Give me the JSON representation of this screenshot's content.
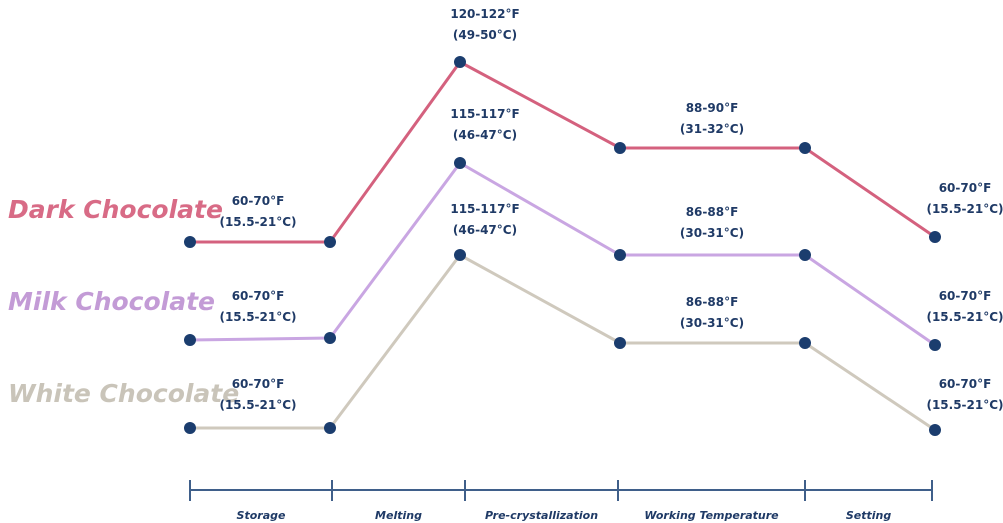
{
  "series": [
    {
      "name": "Dark Chocolate",
      "color": "#d4617e",
      "name_color": "#d86b86",
      "labels": [
        [
          "60-70°F",
          "(15.5-21°C)"
        ],
        [
          "120-122°F",
          "(49-50°C)"
        ],
        [
          "88-90°F",
          "(31-32°C)"
        ],
        [
          "60-70°F",
          "(15.5-21°C)"
        ]
      ]
    },
    {
      "name": "Milk Chocolate",
      "color": "#c9a6e2",
      "name_color": "#c39bd6",
      "labels": [
        [
          "60-70°F",
          "(15.5-21°C)"
        ],
        [
          "115-117°F",
          "(46-47°C)"
        ],
        [
          "86-88°F",
          "(30-31°C)"
        ],
        [
          "60-70°F",
          "(15.5-21°C)"
        ]
      ]
    },
    {
      "name": "White Chocolate",
      "color": "#cfc9bd",
      "name_color": "#c9c4b9",
      "labels": [
        [
          "60-70°F",
          "(15.5-21°C)"
        ],
        [
          "115-117°F",
          "(46-47°C)"
        ],
        [
          "86-88°F",
          "(30-31°C)"
        ],
        [
          "60-70°F",
          "(15.5-21°C)"
        ]
      ]
    }
  ],
  "stages": [
    "Storage",
    "Melting",
    "Pre-crystallization",
    "Working Temperature",
    "Setting"
  ]
}
